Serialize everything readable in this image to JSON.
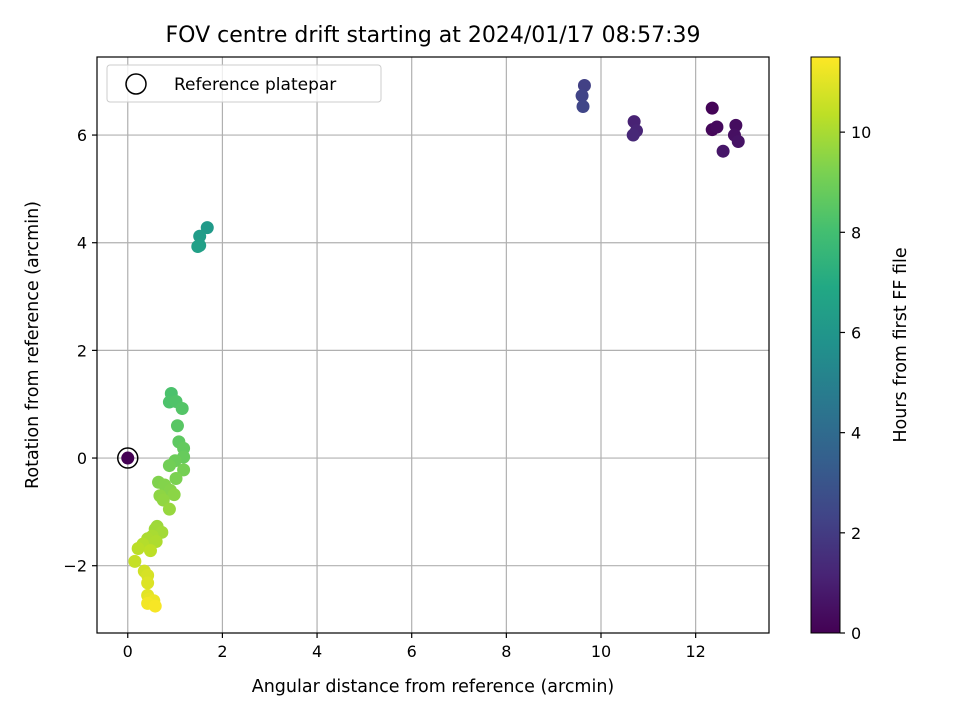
{
  "chart_data": {
    "type": "scatter",
    "title": "FOV centre drift starting at 2024/01/17 08:57:39",
    "xlabel": "Angular distance from reference (arcmin)",
    "ylabel": "Rotation from reference (arcmin)",
    "xlim": [
      -0.65,
      13.55
    ],
    "ylim": [
      -3.25,
      7.45
    ],
    "xticks": [
      0,
      2,
      4,
      6,
      8,
      10,
      12
    ],
    "xtick_labels": [
      "0",
      "2",
      "4",
      "6",
      "8",
      "10",
      "12"
    ],
    "yticks": [
      -2,
      0,
      2,
      4,
      6
    ],
    "ytick_labels": [
      "−2",
      "0",
      "2",
      "4",
      "6"
    ],
    "grid": true,
    "colormap": "viridis",
    "colorbar": {
      "label": "Hours from first FF file",
      "range": [
        0,
        11.5
      ],
      "ticks": [
        0,
        2,
        4,
        6,
        8,
        10
      ],
      "tick_labels": [
        "0",
        "2",
        "4",
        "6",
        "8",
        "10"
      ]
    },
    "legend": {
      "position": "upper-left",
      "label": "Reference platepar"
    },
    "reference_point": {
      "x": 0,
      "y": 0
    },
    "points": [
      {
        "x": 0.0,
        "y": 0.0,
        "c": 0.0
      },
      {
        "x": 12.35,
        "y": 6.5,
        "c": 0.1
      },
      {
        "x": 12.35,
        "y": 6.1,
        "c": 0.2
      },
      {
        "x": 12.45,
        "y": 6.15,
        "c": 0.3
      },
      {
        "x": 12.85,
        "y": 6.18,
        "c": 0.4
      },
      {
        "x": 12.82,
        "y": 6.0,
        "c": 0.5
      },
      {
        "x": 12.9,
        "y": 5.88,
        "c": 0.6
      },
      {
        "x": 12.58,
        "y": 5.7,
        "c": 0.7
      },
      {
        "x": 10.7,
        "y": 6.25,
        "c": 1.1
      },
      {
        "x": 10.75,
        "y": 6.08,
        "c": 1.2
      },
      {
        "x": 10.68,
        "y": 6.0,
        "c": 1.3
      },
      {
        "x": 9.65,
        "y": 6.92,
        "c": 2.2
      },
      {
        "x": 9.6,
        "y": 6.73,
        "c": 2.3
      },
      {
        "x": 9.62,
        "y": 6.53,
        "c": 2.4
      },
      {
        "x": 1.68,
        "y": 4.28,
        "c": 6.2
      },
      {
        "x": 1.52,
        "y": 4.12,
        "c": 6.3
      },
      {
        "x": 1.52,
        "y": 3.95,
        "c": 6.4
      },
      {
        "x": 1.48,
        "y": 3.93,
        "c": 6.5
      },
      {
        "x": 0.92,
        "y": 1.2,
        "c": 8.2
      },
      {
        "x": 0.88,
        "y": 1.04,
        "c": 8.25
      },
      {
        "x": 1.02,
        "y": 1.05,
        "c": 8.3
      },
      {
        "x": 1.15,
        "y": 0.92,
        "c": 8.4
      },
      {
        "x": 1.05,
        "y": 0.6,
        "c": 8.5
      },
      {
        "x": 1.08,
        "y": 0.3,
        "c": 8.6
      },
      {
        "x": 1.18,
        "y": 0.18,
        "c": 8.7
      },
      {
        "x": 1.18,
        "y": 0.02,
        "c": 8.8
      },
      {
        "x": 1.0,
        "y": -0.05,
        "c": 8.9
      },
      {
        "x": 0.88,
        "y": -0.14,
        "c": 9.0
      },
      {
        "x": 1.18,
        "y": -0.22,
        "c": 9.1
      },
      {
        "x": 1.02,
        "y": -0.38,
        "c": 9.2
      },
      {
        "x": 0.65,
        "y": -0.45,
        "c": 9.3
      },
      {
        "x": 0.78,
        "y": -0.5,
        "c": 9.35
      },
      {
        "x": 0.9,
        "y": -0.6,
        "c": 9.4
      },
      {
        "x": 0.98,
        "y": -0.68,
        "c": 9.5
      },
      {
        "x": 0.68,
        "y": -0.7,
        "c": 9.55
      },
      {
        "x": 0.75,
        "y": -0.78,
        "c": 9.6
      },
      {
        "x": 0.88,
        "y": -0.95,
        "c": 9.7
      },
      {
        "x": 0.62,
        "y": -1.27,
        "c": 9.8
      },
      {
        "x": 0.58,
        "y": -1.32,
        "c": 9.85
      },
      {
        "x": 0.72,
        "y": -1.38,
        "c": 9.9
      },
      {
        "x": 0.52,
        "y": -1.45,
        "c": 10.0
      },
      {
        "x": 0.42,
        "y": -1.5,
        "c": 10.05
      },
      {
        "x": 0.6,
        "y": -1.55,
        "c": 10.1
      },
      {
        "x": 0.32,
        "y": -1.6,
        "c": 10.2
      },
      {
        "x": 0.22,
        "y": -1.68,
        "c": 10.3
      },
      {
        "x": 0.48,
        "y": -1.72,
        "c": 10.35
      },
      {
        "x": 0.15,
        "y": -1.92,
        "c": 10.5
      },
      {
        "x": 0.35,
        "y": -2.1,
        "c": 10.7
      },
      {
        "x": 0.42,
        "y": -2.18,
        "c": 10.8
      },
      {
        "x": 0.42,
        "y": -2.32,
        "c": 10.9
      },
      {
        "x": 0.42,
        "y": -2.55,
        "c": 11.0
      },
      {
        "x": 0.45,
        "y": -2.62,
        "c": 11.1
      },
      {
        "x": 0.55,
        "y": -2.65,
        "c": 11.2
      },
      {
        "x": 0.42,
        "y": -2.7,
        "c": 11.3
      },
      {
        "x": 0.58,
        "y": -2.75,
        "c": 11.4
      }
    ]
  }
}
